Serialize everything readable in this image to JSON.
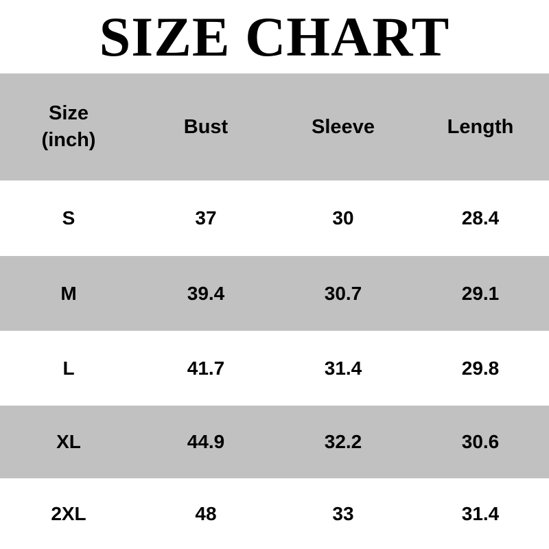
{
  "title": "SIZE CHART",
  "colors": {
    "background": "#ffffff",
    "band_gray": "#c1c1c1",
    "text": "#000000"
  },
  "table": {
    "size_header_line1": "Size",
    "size_header_line2": "(inch)"
  },
  "chart_data": {
    "type": "table",
    "title": "SIZE CHART",
    "unit": "inch",
    "columns": [
      "Size (inch)",
      "Bust",
      "Sleeve",
      "Length"
    ],
    "rows": [
      [
        "S",
        37,
        30,
        28.4
      ],
      [
        "M",
        39.4,
        30.7,
        29.1
      ],
      [
        "L",
        41.7,
        31.4,
        29.8
      ],
      [
        "XL",
        44.9,
        32.2,
        30.6
      ],
      [
        "2XL",
        48,
        33,
        31.4
      ]
    ],
    "layout": {
      "striped": true,
      "header_background": "#c1c1c1",
      "stripe_background": "#c1c1c1",
      "row_background": "#ffffff",
      "grid": false
    }
  }
}
